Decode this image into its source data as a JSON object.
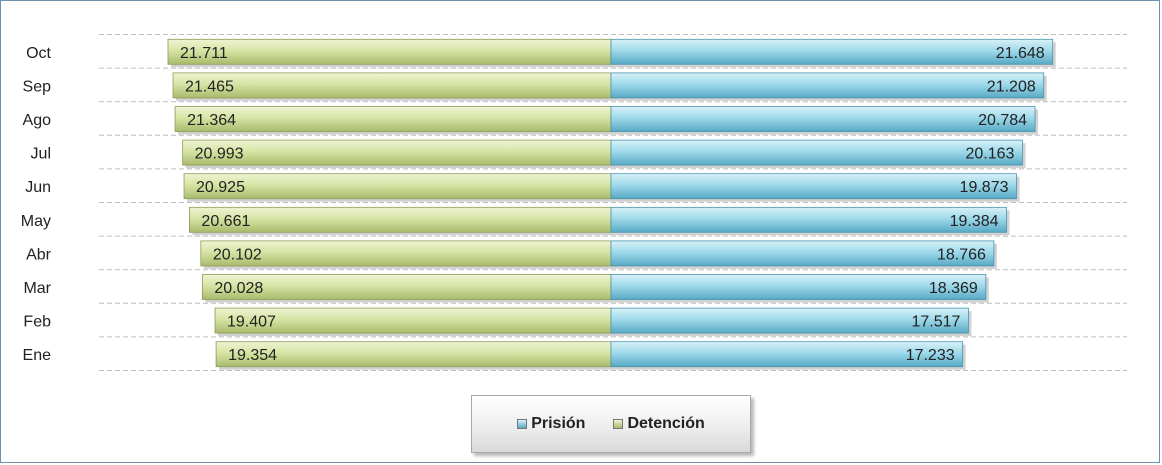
{
  "chart_data": {
    "type": "bar",
    "orientation": "horizontal-diverging",
    "categories": [
      "Oct",
      "Sep",
      "Ago",
      "Jul",
      "Jun",
      "May",
      "Abr",
      "Mar",
      "Feb",
      "Ene"
    ],
    "series": [
      {
        "name": "Detención",
        "side": "left",
        "color": "#d7e4a5",
        "values": [
          21711,
          21465,
          21364,
          20993,
          20925,
          20661,
          20102,
          20028,
          19407,
          19354
        ],
        "labels": [
          "21.711",
          "21.465",
          "21.364",
          "20.993",
          "20.925",
          "20.661",
          "20.102",
          "20.028",
          "19.407",
          "19.354"
        ]
      },
      {
        "name": "Prisión",
        "side": "right",
        "color": "#9fd9ea",
        "values": [
          21648,
          21208,
          20784,
          20163,
          19873,
          19384,
          18766,
          18369,
          17517,
          17233
        ],
        "labels": [
          "21.648",
          "21.208",
          "20.784",
          "20.163",
          "19.873",
          "19.384",
          "18.766",
          "18.369",
          "17.517",
          "17.233"
        ]
      }
    ],
    "grid": true,
    "legend_position": "bottom",
    "legend": [
      {
        "label": "Prisión",
        "color": "#9fd9ea"
      },
      {
        "label": "Detención",
        "color": "#d7e4a5"
      }
    ]
  }
}
